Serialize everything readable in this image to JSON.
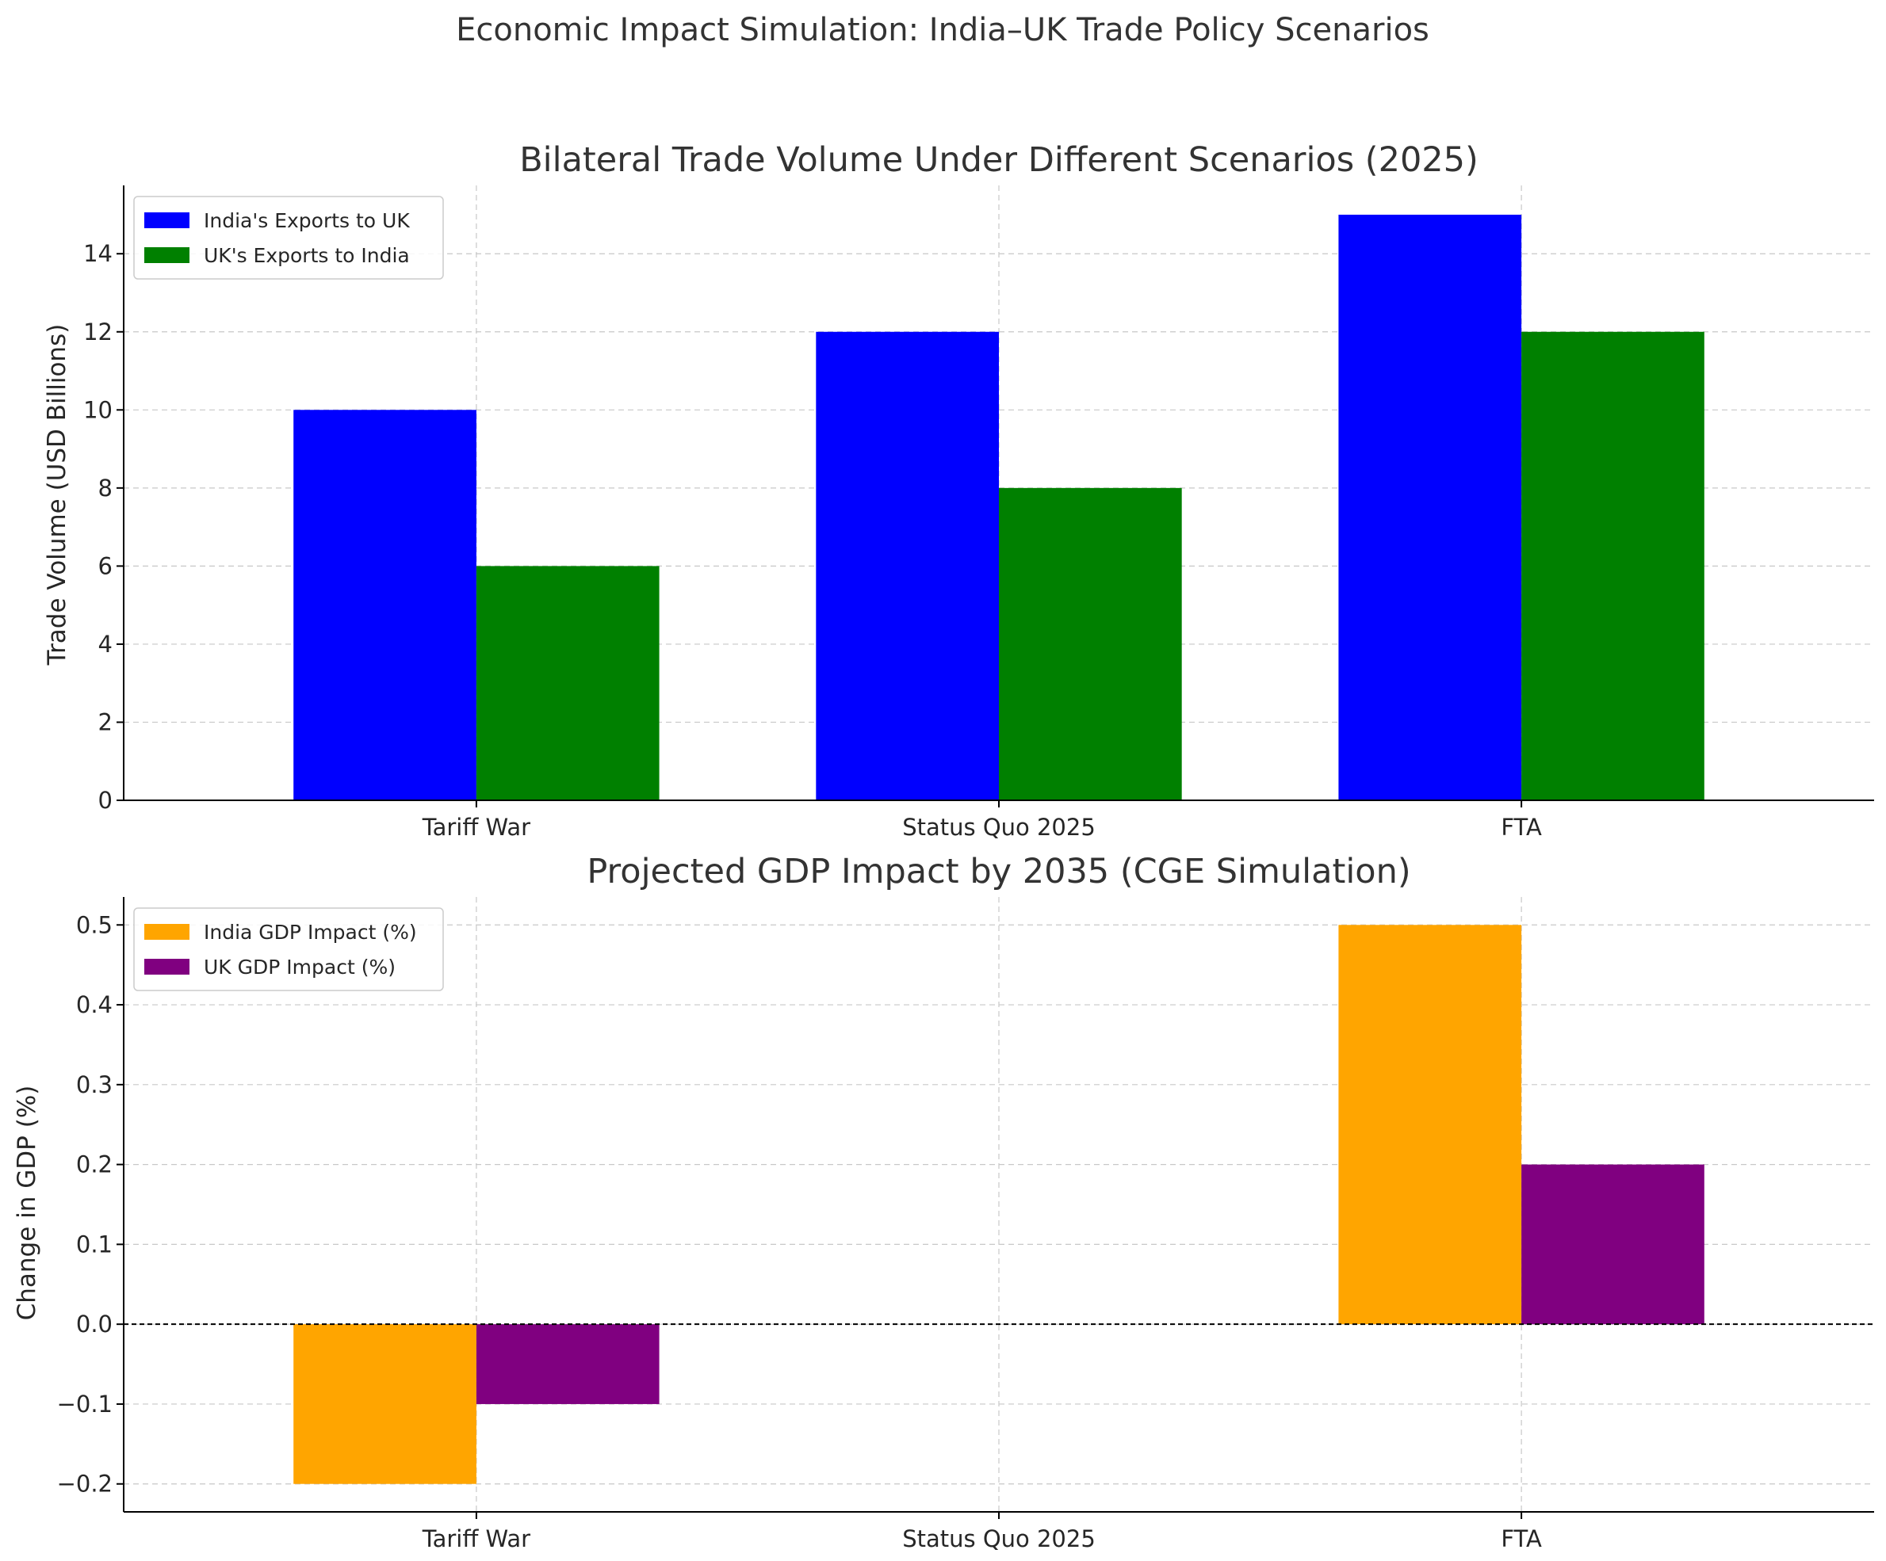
{
  "figure": {
    "suptitle": "Economic Impact Simulation: India–UK Trade Policy Scenarios"
  },
  "chart_data": [
    {
      "type": "bar",
      "title": "Bilateral Trade Volume Under Different Scenarios (2025)",
      "xlabel": "",
      "ylabel": "Trade Volume (USD Billions)",
      "categories": [
        "Tariff War",
        "Status Quo 2025",
        "FTA"
      ],
      "series": [
        {
          "name": "India's Exports to UK",
          "values": [
            10,
            12,
            15
          ],
          "color": "#0000ff"
        },
        {
          "name": "UK's Exports to India",
          "values": [
            6,
            8,
            12
          ],
          "color": "#008000"
        }
      ],
      "ylim": [
        0,
        15.75
      ],
      "yticks": [
        0,
        2,
        4,
        6,
        8,
        10,
        12,
        14
      ],
      "ytick_labels": [
        "0",
        "2",
        "4",
        "6",
        "8",
        "10",
        "12",
        "14"
      ],
      "grid": true,
      "legend_position": "top-left",
      "zero_line": false
    },
    {
      "type": "bar",
      "title": "Projected GDP Impact by 2035 (CGE Simulation)",
      "xlabel": "",
      "ylabel": "Change in GDP (%)",
      "categories": [
        "Tariff War",
        "Status Quo 2025",
        "FTA"
      ],
      "series": [
        {
          "name": "India GDP Impact (%)",
          "values": [
            -0.2,
            0.0,
            0.5
          ],
          "color": "#ffa500"
        },
        {
          "name": "UK GDP Impact (%)",
          "values": [
            -0.1,
            0.0,
            0.2
          ],
          "color": "#800080"
        }
      ],
      "ylim": [
        -0.235,
        0.535
      ],
      "yticks": [
        -0.2,
        -0.1,
        0.0,
        0.1,
        0.2,
        0.3,
        0.4,
        0.5
      ],
      "ytick_labels": [
        "−0.2",
        "−0.1",
        "0.0",
        "0.1",
        "0.2",
        "0.3",
        "0.4",
        "0.5"
      ],
      "grid": true,
      "legend_position": "top-left",
      "zero_line": true
    }
  ]
}
